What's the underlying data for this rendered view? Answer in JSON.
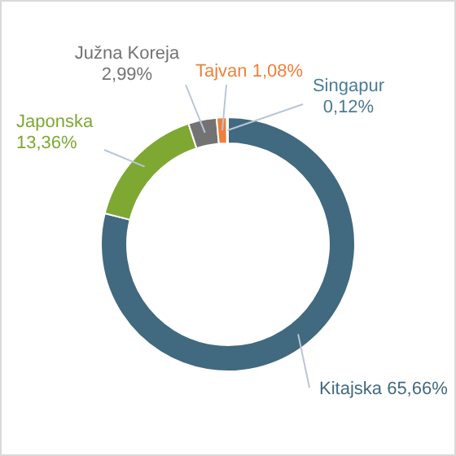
{
  "chart_data": {
    "type": "donut",
    "categories": [
      "Kitajska",
      "Japonska",
      "Južna Koreja",
      "Tajvan",
      "Singapur"
    ],
    "values": [
      65.66,
      13.36,
      2.99,
      1.08,
      0.12
    ],
    "colors": [
      "#41697f",
      "#7ea832",
      "#737373",
      "#f07f3c",
      "#4b7b97"
    ],
    "value_labels": [
      "65,66%",
      "13,36%",
      "2,99%",
      "1,08%",
      "0,12%"
    ]
  }
}
